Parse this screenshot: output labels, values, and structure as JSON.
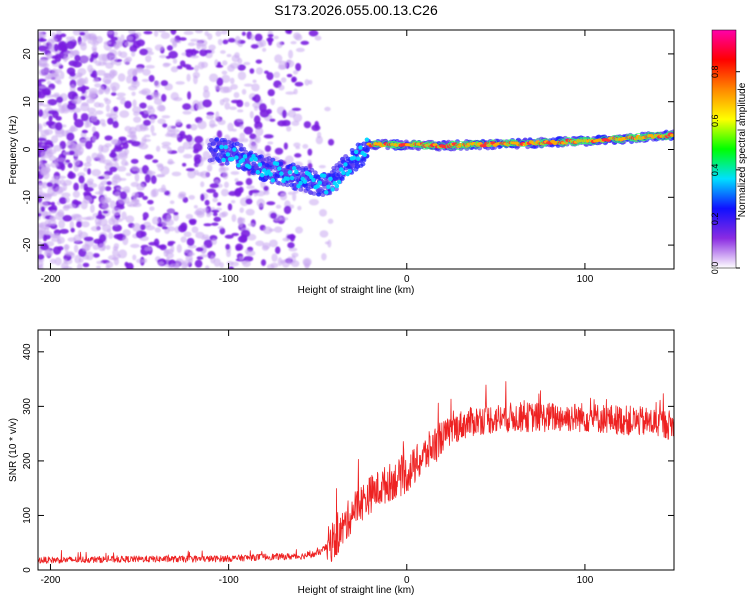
{
  "colors": {
    "spectrogram_low": "#8a2be2",
    "snr_line": "#ee2222",
    "axis": "#000000"
  },
  "chart_data": [
    {
      "type": "heatmap",
      "title": "S173.2026.055.00.13.C26",
      "xlabel": "Height of straight line (km)",
      "ylabel": "Frequency (Hz)",
      "xlim": [
        -207,
        150
      ],
      "ylim": [
        -25,
        25
      ],
      "xticks": [
        -200,
        -100,
        0,
        100
      ],
      "xtick_labels": [
        "-200",
        "-100",
        "0",
        "100"
      ],
      "yticks": [
        -20,
        -10,
        0,
        10,
        20
      ],
      "ytick_labels": [
        "-20",
        "-10",
        "0",
        "10",
        "20"
      ],
      "grid": false,
      "ridge": {
        "description_points_x": [
          -105,
          -90,
          -80,
          -70,
          -60,
          -50,
          -42,
          -35,
          -28,
          -22,
          0,
          20,
          60,
          80,
          100,
          120,
          150
        ],
        "description_points_y": [
          0,
          -2,
          -4,
          -5,
          -6,
          -7,
          -7,
          -4,
          -2,
          1,
          1,
          0.8,
          1.2,
          1.5,
          1.8,
          2.2,
          3
        ]
      },
      "colorbar": {
        "label": "Normalized spectral amplitude",
        "range": [
          0,
          1
        ],
        "ticks": [
          0.0,
          0.2,
          0.4,
          0.6,
          0.8
        ],
        "tick_labels": [
          "0.0",
          "0.2",
          "0.4",
          "0.6",
          "0.8"
        ],
        "stops": [
          "#ffffff",
          "#8a2be2",
          "#1010ff",
          "#00e0ff",
          "#00ff00",
          "#ffff00",
          "#ff8800",
          "#ff0000",
          "#ff00aa"
        ]
      }
    },
    {
      "type": "line",
      "title": "",
      "xlabel": "Height of straight line (km)",
      "ylabel": "SNR (10 * v/v)",
      "xlim": [
        -207,
        150
      ],
      "ylim": [
        0,
        440
      ],
      "xticks": [
        -200,
        -100,
        0,
        100
      ],
      "xtick_labels": [
        "-200",
        "-100",
        "0",
        "100"
      ],
      "yticks": [
        0,
        100,
        200,
        300,
        400
      ],
      "ytick_labels": [
        "0",
        "100",
        "200",
        "300",
        "400"
      ],
      "grid": false,
      "series": [
        {
          "name": "SNR",
          "x": [
            -207,
            -180,
            -150,
            -120,
            -100,
            -80,
            -60,
            -50,
            -40,
            -35,
            -30,
            -20,
            -10,
            0,
            10,
            20,
            30,
            40,
            60,
            80,
            100,
            120,
            140,
            150
          ],
          "values": [
            18,
            19,
            20,
            20,
            21,
            24,
            25,
            30,
            55,
            80,
            110,
            140,
            160,
            175,
            210,
            245,
            265,
            275,
            280,
            280,
            280,
            275,
            270,
            265
          ]
        }
      ]
    }
  ]
}
